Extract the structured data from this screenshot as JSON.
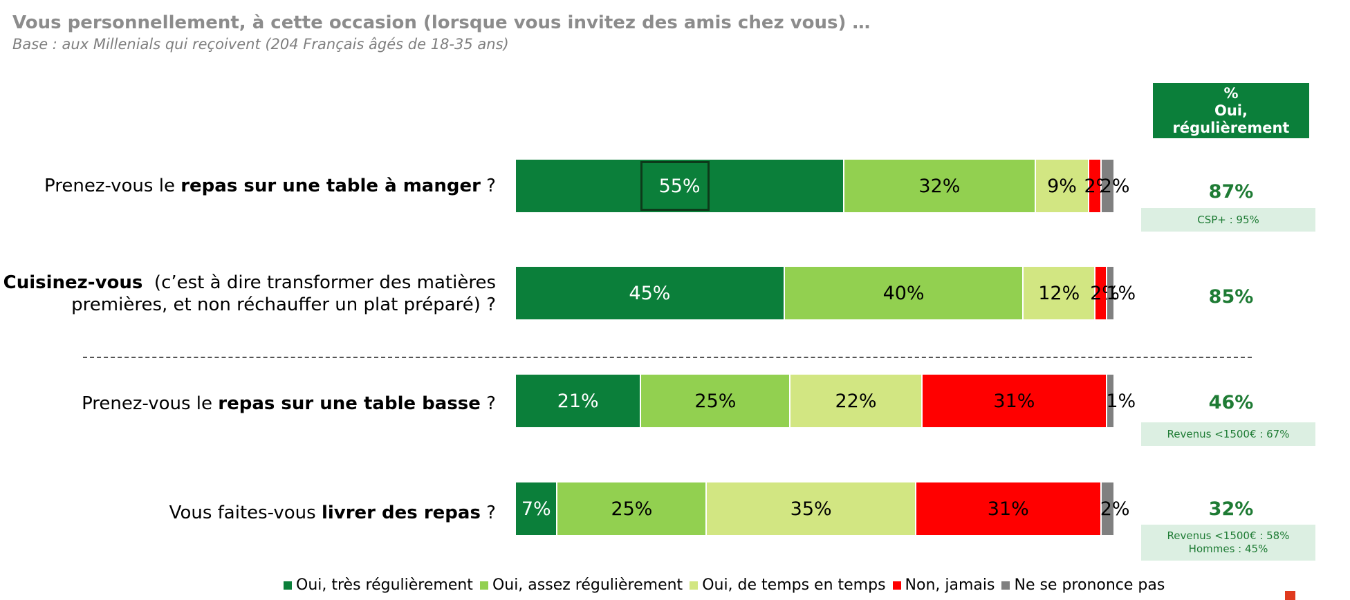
{
  "title": "Vous personnellement, à cette occasion (lorsque vous invitez des amis chez vous) …",
  "subtitle": "Base : aux Millenials qui reçoivent (204 Français âgés de 18-35 ans)",
  "header_box": {
    "line1": "%",
    "line2": "Oui,",
    "line3": "régulièrement"
  },
  "colors": {
    "tres_regulierement": "#0b7f3a",
    "assez_regulierement": "#92d050",
    "de_temps_en_temps": "#d2e682",
    "non_jamais": "#ff0000",
    "ne_se_prononce_pas": "#808080",
    "accent_text": "#1e7b34"
  },
  "questions": [
    {
      "prefix": "Prenez-vous le ",
      "bold": "repas sur une table à manger",
      "suffix": " ?"
    },
    {
      "bold": "Cuisinez-vous",
      "line1_rest": "  (c’est à dire transformer des matières",
      "line2": "premières, et non réchauffer un plat préparé) ?"
    },
    {
      "prefix": "Prenez-vous le ",
      "bold": "repas sur une table basse",
      "suffix": " ?"
    },
    {
      "prefix": "Vous faites-vous ",
      "bold": "livrer des repas",
      "suffix": " ?"
    }
  ],
  "oui_regulierement": [
    "87%",
    "85%",
    "46%",
    "32%"
  ],
  "notes": [
    [
      "CSP+ : 95%"
    ],
    [],
    [
      "Revenus <1500€ : 67%"
    ],
    [
      "Revenus <1500€ : 58%",
      "Hommes : 45%"
    ]
  ],
  "legend": [
    "Oui, très régulièrement",
    "Oui, assez régulièrement",
    "Oui, de temps en temps",
    "Non, jamais",
    "Ne se prononce pas"
  ],
  "chart_data": {
    "type": "bar",
    "orientation": "horizontal",
    "stacked": true,
    "categories": [
      "Prenez-vous le repas sur une table à manger ?",
      "Cuisinez-vous (c’est à dire transformer des matières premières, et non réchauffer un plat préparé) ?",
      "Prenez-vous le repas sur une table basse ?",
      "Vous faites-vous livrer des repas ?"
    ],
    "series": [
      {
        "name": "Oui, très régulièrement",
        "values": [
          55,
          45,
          21,
          7
        ],
        "labels": [
          "55%",
          "45%",
          "21%",
          "7%"
        ]
      },
      {
        "name": "Oui, assez régulièrement",
        "values": [
          32,
          40,
          25,
          25
        ],
        "labels": [
          "32%",
          "40%",
          "25%",
          "25%"
        ]
      },
      {
        "name": "Oui, de temps en temps",
        "values": [
          9,
          12,
          22,
          35
        ],
        "labels": [
          "9%",
          "12%",
          "22%",
          "35%"
        ]
      },
      {
        "name": "Non, jamais",
        "values": [
          2,
          2,
          31,
          31
        ],
        "labels": [
          "2%",
          "2%",
          "31%",
          "31%"
        ]
      },
      {
        "name": "Ne se prononce pas",
        "values": [
          2,
          1,
          1,
          2
        ],
        "labels": [
          "2%",
          "1%",
          "1%",
          "2%"
        ]
      }
    ],
    "xlim": [
      0,
      100
    ],
    "legend_position": "bottom",
    "grid": false
  }
}
